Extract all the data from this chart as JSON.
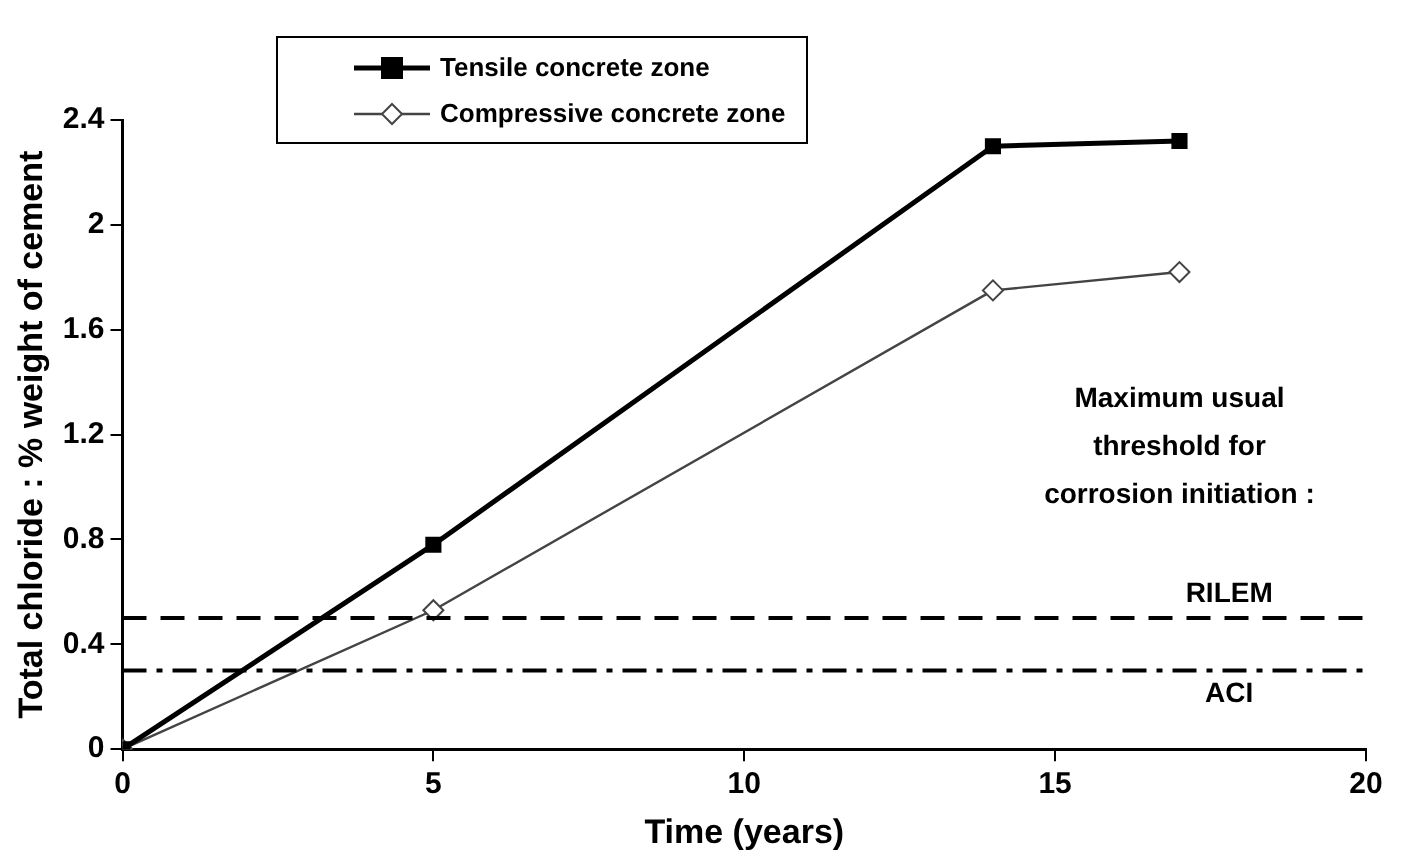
{
  "chart_data": {
    "type": "line",
    "xlabel": "Time (years)",
    "ylabel": "Total chloride : % weight of cement",
    "x": [
      0,
      5,
      14,
      17
    ],
    "series": [
      {
        "name": "Tensile concrete zone",
        "color": "#000000",
        "values": [
          0,
          0.78,
          2.3,
          2.32
        ],
        "marker": "square",
        "line_style": "solid"
      },
      {
        "name": "Compressive concrete zone",
        "color": "#444444",
        "values": [
          0,
          0.53,
          1.75,
          1.82
        ],
        "marker": "diamond",
        "line_style": "solid"
      }
    ],
    "xlim": [
      0,
      20
    ],
    "xticks": [
      0,
      5,
      10,
      15,
      20
    ],
    "ylim": [
      0,
      2.4
    ],
    "yticks": [
      0,
      0.4,
      0.8,
      1.2,
      1.6,
      2,
      2.4
    ],
    "grid": false,
    "legend": "top left",
    "ref_lines": [
      {
        "axis": "y",
        "value": 0.5,
        "label": "RILEM",
        "color": "#000000",
        "line_style": "dashed"
      },
      {
        "axis": "y",
        "value": 0.3,
        "label": "ACI",
        "color": "#000000",
        "line_style": "dashdot"
      }
    ],
    "annotations": [
      "Maximum usual threshold for corrosion initiation :"
    ]
  }
}
